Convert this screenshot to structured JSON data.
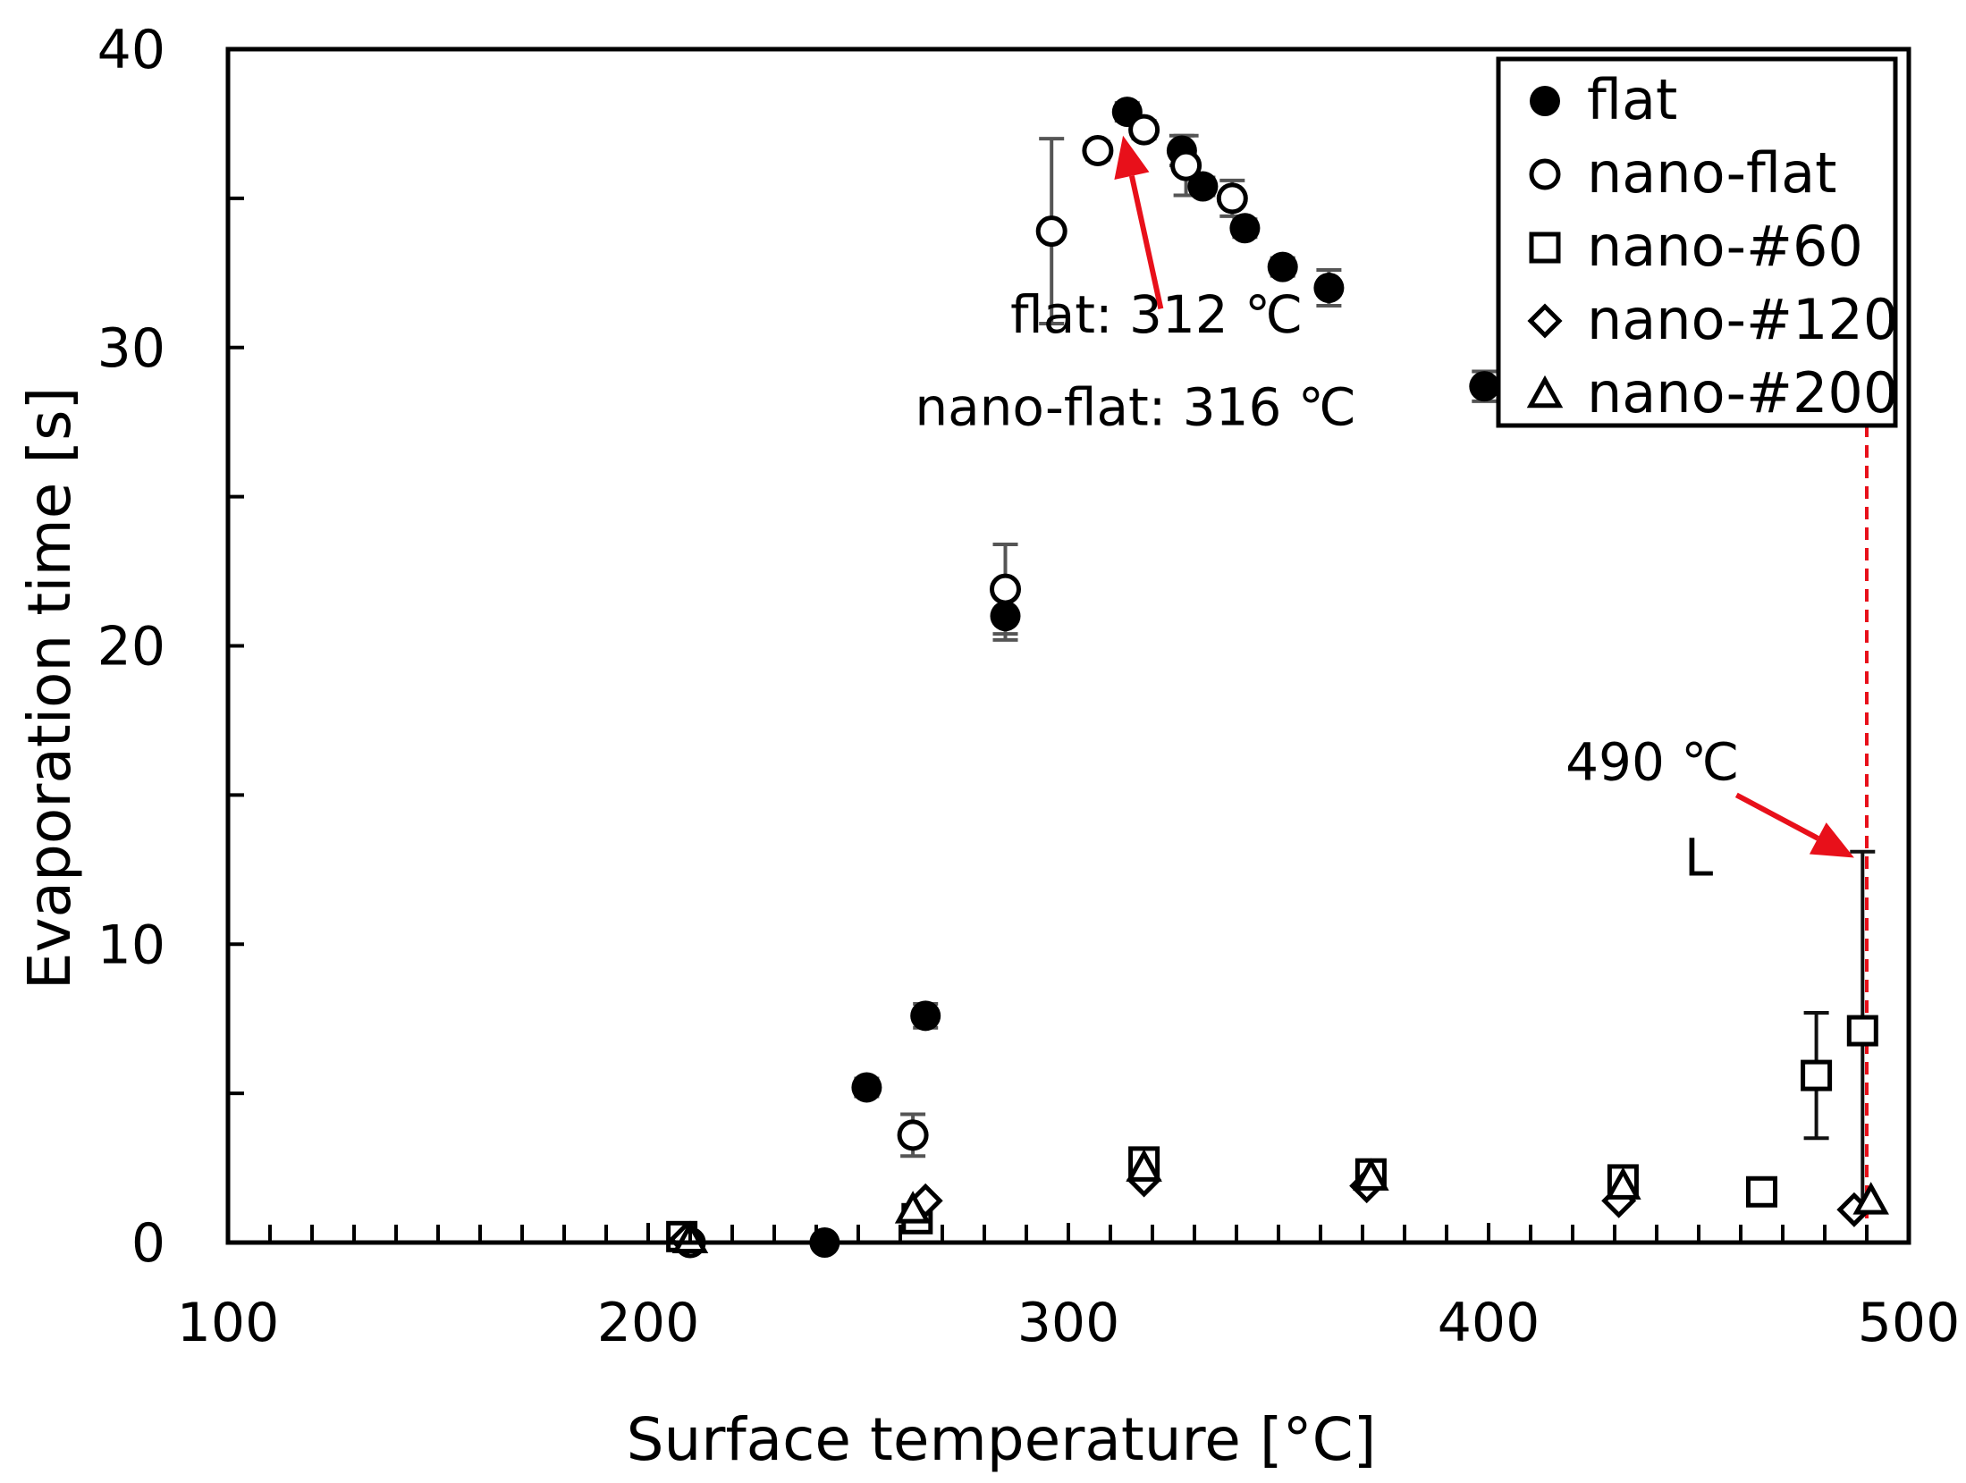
{
  "chart_data": {
    "type": "scatter",
    "title": "",
    "xlabel": "Surface temperature  [°C]",
    "ylabel": "Evaporation time  [s]",
    "xlim": [
      100,
      500
    ],
    "ylim": [
      0,
      40
    ],
    "x_ticks": [
      100,
      200,
      300,
      400,
      500
    ],
    "y_ticks": [
      0,
      10,
      20,
      30,
      40
    ],
    "x_minor_step": 10,
    "y_minor_step": 5,
    "grid": false,
    "legend_position": "top-right",
    "series": [
      {
        "name": "flat",
        "marker": "filled-circle",
        "x": [
          210,
          242,
          252,
          266,
          285,
          314,
          327,
          332,
          342,
          351,
          362,
          399
        ],
        "y": [
          0,
          0,
          5.2,
          7.6,
          21,
          37.9,
          36.6,
          35.4,
          34,
          32.7,
          32,
          28.7
        ],
        "err": [
          0,
          0,
          0.3,
          0.4,
          0.8,
          0.3,
          0.5,
          0.3,
          0.3,
          0.3,
          0.6,
          0.5
        ]
      },
      {
        "name": "nano-flat",
        "marker": "open-circle",
        "x": [
          210,
          263,
          285,
          296,
          307,
          318,
          328,
          339
        ],
        "y": [
          0,
          3.6,
          21.9,
          33.9,
          36.6,
          37.3,
          36.1,
          35
        ],
        "err": [
          0,
          0.7,
          1.5,
          3.1,
          0.3,
          0.3,
          1,
          0.6
        ]
      },
      {
        "name": "nano-#60",
        "marker": "open-square",
        "x": [
          208,
          264,
          318,
          372,
          432,
          465,
          478,
          489
        ],
        "y": [
          0.2,
          0.8,
          2.7,
          2.3,
          2.1,
          1.7,
          5.6,
          7.1
        ],
        "err": [
          0,
          0,
          0,
          0,
          0,
          0,
          2.1,
          6
        ]
      },
      {
        "name": "nano-#120",
        "marker": "open-diamond",
        "x": [
          209,
          266,
          318,
          371,
          431,
          487
        ],
        "y": [
          0.1,
          1.4,
          2.1,
          1.9,
          1.4,
          1.1
        ],
        "err": [
          0,
          0,
          0,
          0,
          0,
          0
        ]
      },
      {
        "name": "nano-#200",
        "marker": "open-triangle",
        "x": [
          210,
          263,
          318,
          372,
          432,
          491
        ],
        "y": [
          0.1,
          1.1,
          2.5,
          2.2,
          1.9,
          1.4
        ],
        "err": [
          0,
          0,
          0,
          0,
          0,
          0
        ]
      }
    ],
    "reference_line": {
      "x": 490,
      "color": "#e8101a",
      "style": "dashed"
    },
    "annotations": [
      {
        "text": "flat: 312 ℃",
        "x": 321,
        "y": 30.5
      },
      {
        "text": "nano-flat: 316 ℃",
        "x": 316,
        "y": 27.4
      },
      {
        "text": "490 ℃",
        "x": 439,
        "y": 15.5
      },
      {
        "text": "L",
        "x": 450,
        "y": 12.3
      }
    ],
    "arrows": [
      {
        "from": [
          322,
          31.3
        ],
        "to": [
          313,
          37.1
        ]
      },
      {
        "from": [
          459,
          15
        ],
        "to": [
          487,
          12.9
        ]
      }
    ]
  },
  "colors": {
    "axis": "#000000",
    "error_bar": "#555555",
    "error_bar_highlight": "#111111",
    "marker_fill": "#000000",
    "marker_open": "#ffffff",
    "annotation_arrow": "#e8101a"
  }
}
